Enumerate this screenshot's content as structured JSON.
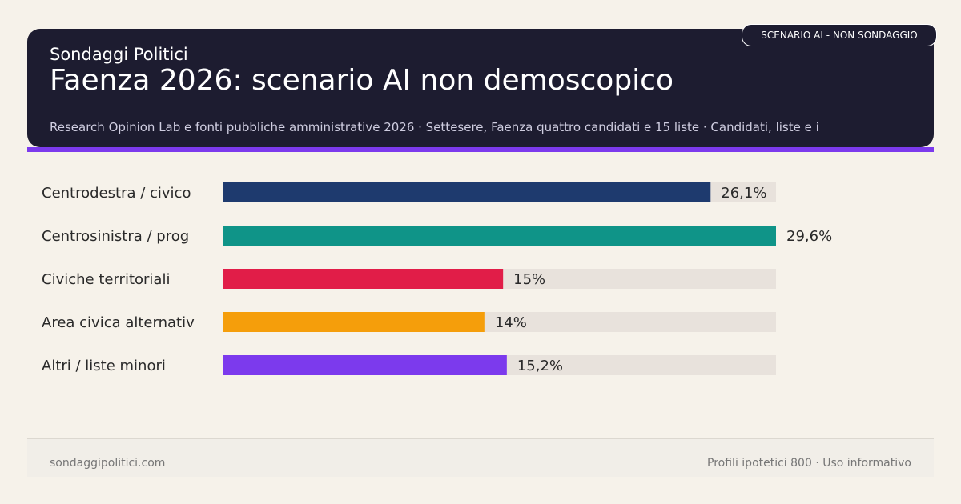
{
  "header": {
    "brand": "Sondaggi Politici",
    "title": "Faenza 2026: scenario AI non demoscopico",
    "subtitle": "Research Opinion Lab e fonti pubbliche amministrative 2026 · Settesere, Faenza quattro candidati e 15 liste · Candidati, liste e i"
  },
  "badge": "SCENARIO AI - NON SONDAGGIO",
  "footer": {
    "site": "sondaggipolitici.com",
    "note": "Profili ipotetici 800 · Uso informativo"
  },
  "colors": {
    "header_bg": "#1d1c30",
    "accent": "#7c3aed",
    "track": "#e8e2dc",
    "background": "#f6f2ea"
  },
  "chart_data": {
    "type": "bar",
    "orientation": "horizontal",
    "categories": [
      "Centrodestra / civico",
      "Centrosinistra / prog",
      "Civiche territoriali",
      "Area civica alternativ",
      "Altri / liste minori"
    ],
    "values": [
      26.1,
      29.6,
      15,
      14,
      15.2
    ],
    "value_labels": [
      "26,1%",
      "29,6%",
      "15%",
      "14%",
      "15,2%"
    ],
    "colors": [
      "#1e3a6e",
      "#0f9488",
      "#e11d48",
      "#f59e0b",
      "#7c3aed"
    ],
    "xlim": [
      0,
      29.6
    ],
    "grid": false,
    "legend": "none"
  }
}
